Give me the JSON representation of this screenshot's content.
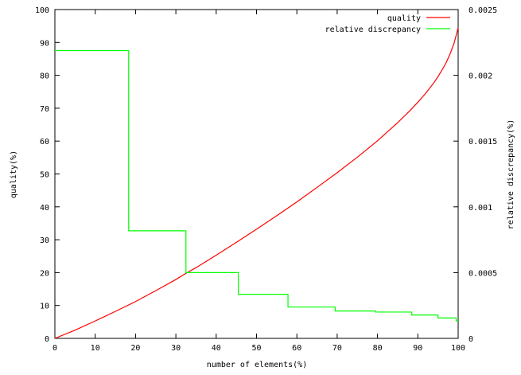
{
  "chart_data": {
    "type": "line",
    "xlabel": "number of elements(%)",
    "ylabel": "quality(%)",
    "y2label": "relative discrepancy(%)",
    "xlim": [
      0,
      100
    ],
    "ylim": [
      0,
      100
    ],
    "y2lim": [
      0,
      0.0025
    ],
    "x_ticks": [
      "0",
      "10",
      "20",
      "30",
      "40",
      "50",
      "60",
      "70",
      "80",
      "90",
      "100"
    ],
    "y_ticks": [
      "0",
      "10",
      "20",
      "30",
      "40",
      "50",
      "60",
      "70",
      "80",
      "90",
      "100"
    ],
    "y2_ticks": [
      "0",
      "0.0005",
      "0.001",
      "0.0015",
      "0.002",
      "0.0025"
    ],
    "grid": false,
    "legend_position": "top-right",
    "series": [
      {
        "name": "quality",
        "axis": "left",
        "color": "#ff0000",
        "x": [
          0,
          5,
          10,
          15,
          20,
          25,
          30,
          32.5,
          35,
          40,
          45,
          50,
          55,
          60,
          65,
          70,
          75,
          80,
          85,
          88,
          90,
          92,
          94,
          95,
          96,
          97,
          98,
          99,
          100
        ],
        "y": [
          0,
          2.5,
          5.3,
          8.2,
          11.2,
          14.5,
          17.9,
          19.8,
          21.5,
          25.3,
          29.2,
          33.2,
          37.3,
          41.5,
          45.9,
          50.4,
          55.1,
          60.1,
          65.6,
          69.2,
          71.8,
          74.6,
          77.8,
          79.6,
          81.6,
          83.8,
          86.5,
          89.8,
          94.5
        ]
      },
      {
        "name": "relative discrepancy",
        "axis": "right",
        "color": "#00ff00",
        "step": true,
        "x": [
          0,
          18.3,
          18.3,
          32.5,
          32.5,
          45.5,
          45.5,
          57.8,
          57.8,
          69.5,
          69.5,
          79.5,
          79.5,
          88.5,
          88.5,
          95,
          95,
          99.5,
          99.5,
          100
        ],
        "y": [
          0.002188,
          0.002188,
          0.000818,
          0.000818,
          0.0005,
          0.0005,
          0.000335,
          0.000335,
          0.000238,
          0.000238,
          0.000208,
          0.000208,
          0.0002,
          0.0002,
          0.000178,
          0.000178,
          0.000155,
          0.000155,
          0.000133,
          0.000133
        ]
      }
    ]
  }
}
